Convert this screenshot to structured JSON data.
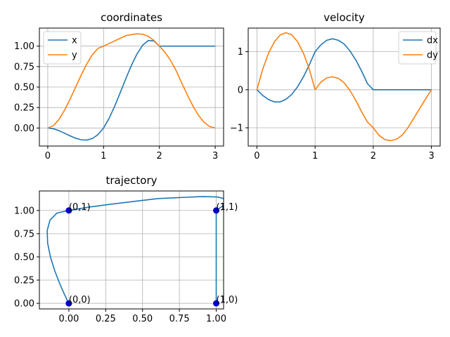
{
  "colors": {
    "blue": "#1f77b4",
    "orange": "#ff7f0e",
    "marker": "#0000cd"
  },
  "chart_data": [
    {
      "type": "line",
      "title": "coordinates",
      "xlim": [
        -0.15,
        3.15
      ],
      "ylim": [
        -0.22,
        1.22
      ],
      "xticks": [
        0,
        1,
        2,
        3
      ],
      "xtick_labels": [
        "0",
        "1",
        "2",
        "3"
      ],
      "yticks": [
        0.0,
        0.25,
        0.5,
        0.75,
        1.0
      ],
      "ytick_labels": [
        "0.00",
        "0.25",
        "0.50",
        "0.75",
        "1.00"
      ],
      "grid": true,
      "legend": "top-left",
      "series": [
        {
          "name": "x",
          "color": "#1f77b4",
          "x": [
            0,
            0.1,
            0.2,
            0.3,
            0.4,
            0.5,
            0.6,
            0.7,
            0.8,
            0.9,
            1.0,
            1.1,
            1.2,
            1.3,
            1.4,
            1.5,
            1.6,
            1.7,
            1.8,
            1.9,
            2.0,
            2.5,
            3.0
          ],
          "y": [
            0,
            -0.009,
            -0.032,
            -0.063,
            -0.096,
            -0.125,
            -0.144,
            -0.147,
            -0.128,
            -0.081,
            0.0,
            0.119,
            0.268,
            0.434,
            0.605,
            0.767,
            0.906,
            1.011,
            1.068,
            1.063,
            1.0,
            1.0,
            1.0
          ]
        },
        {
          "name": "y",
          "color": "#ff7f0e",
          "x": [
            0,
            0.1,
            0.2,
            0.3,
            0.4,
            0.5,
            0.6,
            0.7,
            0.8,
            0.9,
            1.0,
            1.1,
            1.2,
            1.3,
            1.4,
            1.5,
            1.6,
            1.7,
            1.8,
            1.9,
            2.0,
            2.1,
            2.2,
            2.3,
            2.4,
            2.5,
            2.6,
            2.7,
            2.8,
            2.9,
            3.0
          ],
          "y": [
            0,
            0.028,
            0.104,
            0.216,
            0.352,
            0.5,
            0.648,
            0.784,
            0.896,
            0.972,
            1.0,
            1.032,
            1.064,
            1.096,
            1.128,
            1.14,
            1.15,
            1.145,
            1.12,
            1.07,
            1.0,
            0.925,
            0.825,
            0.7,
            0.55,
            0.405,
            0.27,
            0.155,
            0.07,
            0.018,
            0.0
          ]
        }
      ]
    },
    {
      "type": "line",
      "title": "velocity",
      "xlim": [
        -0.15,
        3.15
      ],
      "ylim": [
        -1.48,
        1.62
      ],
      "xticks": [
        0,
        1,
        2,
        3
      ],
      "xtick_labels": [
        "0",
        "1",
        "2",
        "3"
      ],
      "yticks": [
        -1,
        0,
        1
      ],
      "ytick_labels": [
        "−1",
        "0",
        "1"
      ],
      "grid": true,
      "legend": "top-right",
      "series": [
        {
          "name": "dx",
          "color": "#1f77b4",
          "x": [
            0,
            0.1,
            0.2,
            0.3,
            0.4,
            0.5,
            0.6,
            0.7,
            0.8,
            0.9,
            1.0,
            1.1,
            1.2,
            1.3,
            1.4,
            1.5,
            1.6,
            1.7,
            1.8,
            1.9,
            2.0,
            2.5,
            3.0
          ],
          "y": [
            0,
            -0.15,
            -0.26,
            -0.32,
            -0.32,
            -0.25,
            -0.12,
            0.08,
            0.34,
            0.65,
            1.0,
            1.18,
            1.3,
            1.34,
            1.3,
            1.2,
            1.02,
            0.78,
            0.49,
            0.16,
            0.0,
            0.0,
            0.0
          ]
        },
        {
          "name": "dy",
          "color": "#ff7f0e",
          "x": [
            0,
            0.1,
            0.2,
            0.3,
            0.4,
            0.5,
            0.6,
            0.7,
            0.8,
            0.9,
            1.0,
            1.1,
            1.2,
            1.3,
            1.4,
            1.5,
            1.6,
            1.7,
            1.8,
            1.9,
            2.0,
            2.1,
            2.2,
            2.3,
            2.4,
            2.5,
            2.6,
            2.7,
            2.8,
            2.9,
            3.0
          ],
          "y": [
            0,
            0.54,
            0.96,
            1.26,
            1.44,
            1.5,
            1.44,
            1.26,
            0.96,
            0.54,
            0.0,
            0.2,
            0.31,
            0.34,
            0.3,
            0.18,
            -0.02,
            -0.28,
            -0.58,
            -0.85,
            -1.0,
            -1.2,
            -1.31,
            -1.34,
            -1.3,
            -1.19,
            -0.99,
            -0.74,
            -0.49,
            -0.24,
            0.0
          ]
        }
      ]
    },
    {
      "type": "scatter",
      "title": "trajectory",
      "xlim": [
        -0.2,
        1.05
      ],
      "ylim": [
        -0.06,
        1.21
      ],
      "xticks": [
        0,
        0.25,
        0.5,
        0.75,
        1.0
      ],
      "xtick_labels": [
        "0.00",
        "0.25",
        "0.50",
        "0.75",
        "1.00"
      ],
      "yticks": [
        0.0,
        0.25,
        0.5,
        0.75,
        1.0
      ],
      "ytick_labels": [
        "0.00",
        "0.25",
        "0.50",
        "0.75",
        "1.00"
      ],
      "grid": true,
      "line": {
        "color": "#1f77b4",
        "x": [
          0,
          -0.009,
          -0.032,
          -0.063,
          -0.096,
          -0.125,
          -0.144,
          -0.147,
          -0.128,
          -0.081,
          0.0,
          0.119,
          0.268,
          0.434,
          0.605,
          0.767,
          0.906,
          1.011,
          1.068,
          1.063,
          1.0,
          1.0,
          1.0
        ],
        "y": [
          0,
          0.028,
          0.104,
          0.216,
          0.352,
          0.5,
          0.648,
          0.784,
          0.896,
          0.972,
          1.0,
          1.032,
          1.064,
          1.096,
          1.128,
          1.14,
          1.15,
          1.145,
          1.12,
          1.07,
          1.0,
          0.405,
          0.0
        ]
      },
      "points": [
        {
          "x": 0,
          "y": 0,
          "label": "(0,0)"
        },
        {
          "x": 0,
          "y": 1,
          "label": "(0,1)"
        },
        {
          "x": 1,
          "y": 1,
          "label": "(1,1)"
        },
        {
          "x": 1,
          "y": 0,
          "label": "(1,0)"
        }
      ]
    }
  ]
}
